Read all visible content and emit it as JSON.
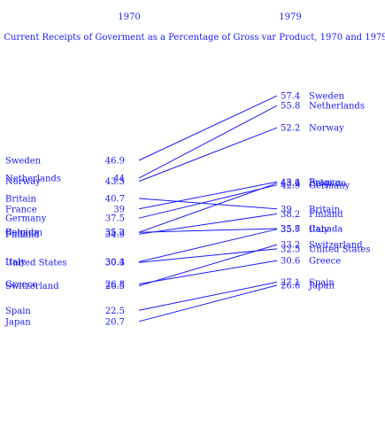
{
  "chart_data": {
    "type": "line",
    "title": "Current Receipts of Goverment as a Percentage of Gross var Product, 1970 and 1979",
    "x": [
      "1970",
      "1979"
    ],
    "color": "#1a1aff",
    "series": [
      {
        "name": "Sweden",
        "values": [
          46.9,
          57.4
        ]
      },
      {
        "name": "Netherlands",
        "values": [
          44,
          55.8
        ]
      },
      {
        "name": "Norway",
        "values": [
          43.5,
          52.2
        ]
      },
      {
        "name": "Britain",
        "values": [
          40.7,
          39
        ]
      },
      {
        "name": "France",
        "values": [
          39,
          43.4
        ]
      },
      {
        "name": "Germany",
        "values": [
          37.5,
          42.9
        ]
      },
      {
        "name": "Canada",
        "values": [
          35.2,
          35.8
        ]
      },
      {
        "name": "Belgium",
        "values": [
          35.2,
          43.2
        ]
      },
      {
        "name": "Finland",
        "values": [
          34.9,
          38.2
        ]
      },
      {
        "name": "Italy",
        "values": [
          30.4,
          35.7
        ]
      },
      {
        "name": "United States",
        "values": [
          30.3,
          32.5
        ]
      },
      {
        "name": "Greece",
        "values": [
          26.8,
          30.6
        ]
      },
      {
        "name": "Switzerland",
        "values": [
          26.5,
          33.2
        ]
      },
      {
        "name": "Spain",
        "values": [
          22.5,
          27.1
        ]
      },
      {
        "name": "Japan",
        "values": [
          20.7,
          26.6
        ]
      }
    ],
    "left_column": [
      {
        "country": "Sweden",
        "value": "46.9"
      },
      {
        "country": "Netherlands",
        "value": "44"
      },
      {
        "country": "Norway",
        "value": "43.5"
      },
      {
        "country": "Britain",
        "value": "40.7"
      },
      {
        "country": "France",
        "value": "39"
      },
      {
        "country": "Germany",
        "value": "37.5"
      },
      {
        "country": "Canada",
        "value": "35.2"
      },
      {
        "country": "Belgium",
        "value": "35.2"
      },
      {
        "country": "Finland",
        "value": "34.9"
      },
      {
        "country": "Italy",
        "value": "30.4"
      },
      {
        "country": "United States",
        "value": "30.3"
      },
      {
        "country": "Greece",
        "value": "26.8"
      },
      {
        "country": "Switzerland",
        "value": "26.5"
      },
      {
        "country": "Spain",
        "value": "22.5"
      },
      {
        "country": "Japan",
        "value": "20.7"
      }
    ],
    "right_column": [
      {
        "country": "Sweden",
        "value": "57.4"
      },
      {
        "country": "Netherlands",
        "value": "55.8"
      },
      {
        "country": "Norway",
        "value": "52.2"
      },
      {
        "country": "France",
        "value": "43.4"
      },
      {
        "country": "Belgium",
        "value": "43.2"
      },
      {
        "country": "Germany",
        "value": "42.9"
      },
      {
        "country": "Britain",
        "value": "39"
      },
      {
        "country": "Finland",
        "value": "38.2"
      },
      {
        "country": "Canada",
        "value": "35.8"
      },
      {
        "country": "Italy",
        "value": "35.7"
      },
      {
        "country": "Switzerland",
        "value": "33.2"
      },
      {
        "country": "United States",
        "value": "32.5"
      },
      {
        "country": "Greece",
        "value": "30.6"
      },
      {
        "country": "Spain",
        "value": "27.1"
      },
      {
        "country": "Japan",
        "value": "26.6"
      }
    ]
  }
}
